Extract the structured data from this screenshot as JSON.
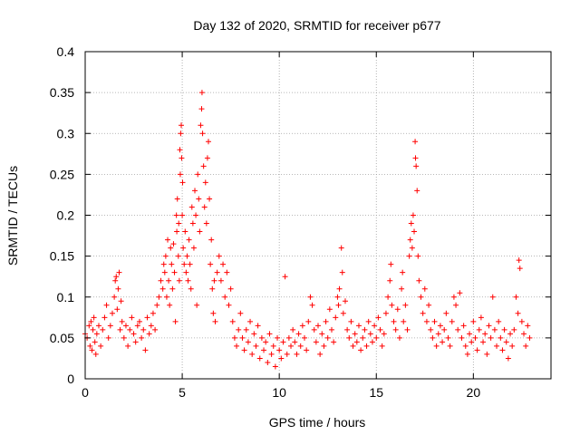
{
  "chart_data": {
    "type": "scatter",
    "title": "Day 132 of 2020, SRMTID for receiver p677",
    "xlabel": "GPS time / hours",
    "ylabel": "SRMTID / TECUs",
    "xlim": [
      0,
      24
    ],
    "ylim": [
      0,
      0.4
    ],
    "grid": true,
    "marker": "+",
    "marker_color": "#ff0000",
    "x_ticks": [
      0,
      5,
      10,
      15,
      20
    ],
    "x_tick_labels": [
      "0",
      "5",
      "10",
      "15",
      "20"
    ],
    "y_ticks": [
      0,
      0.05,
      0.1,
      0.15,
      0.2,
      0.25,
      0.3,
      0.35,
      0.4
    ],
    "y_tick_labels": [
      "0",
      "0.05",
      "0.1",
      "0.15",
      "0.2",
      "0.25",
      "0.3",
      "0.35",
      "0.4"
    ],
    "series": [
      {
        "name": "SRMTID",
        "points": [
          [
            0.0,
            0.055
          ],
          [
            0.1,
            0.05
          ],
          [
            0.2,
            0.065
          ],
          [
            0.25,
            0.04
          ],
          [
            0.3,
            0.07
          ],
          [
            0.35,
            0.035
          ],
          [
            0.4,
            0.06
          ],
          [
            0.45,
            0.075
          ],
          [
            0.5,
            0.045
          ],
          [
            0.55,
            0.03
          ],
          [
            0.6,
            0.055
          ],
          [
            0.7,
            0.065
          ],
          [
            0.8,
            0.04
          ],
          [
            0.9,
            0.06
          ],
          [
            1.0,
            0.075
          ],
          [
            1.1,
            0.09
          ],
          [
            1.2,
            0.05
          ],
          [
            1.3,
            0.065
          ],
          [
            1.4,
            0.08
          ],
          [
            1.5,
            0.1
          ],
          [
            1.55,
            0.12
          ],
          [
            1.6,
            0.125
          ],
          [
            1.65,
            0.085
          ],
          [
            1.7,
            0.11
          ],
          [
            1.75,
            0.13
          ],
          [
            1.8,
            0.06
          ],
          [
            1.85,
            0.095
          ],
          [
            1.9,
            0.07
          ],
          [
            2.0,
            0.05
          ],
          [
            2.1,
            0.065
          ],
          [
            2.2,
            0.04
          ],
          [
            2.3,
            0.06
          ],
          [
            2.4,
            0.075
          ],
          [
            2.5,
            0.055
          ],
          [
            2.6,
            0.045
          ],
          [
            2.7,
            0.065
          ],
          [
            2.8,
            0.07
          ],
          [
            2.9,
            0.05
          ],
          [
            3.0,
            0.06
          ],
          [
            3.1,
            0.035
          ],
          [
            3.2,
            0.075
          ],
          [
            3.3,
            0.055
          ],
          [
            3.4,
            0.065
          ],
          [
            3.5,
            0.08
          ],
          [
            3.6,
            0.06
          ],
          [
            3.7,
            0.09
          ],
          [
            3.8,
            0.1
          ],
          [
            3.9,
            0.12
          ],
          [
            4.0,
            0.11
          ],
          [
            4.05,
            0.14
          ],
          [
            4.1,
            0.13
          ],
          [
            4.15,
            0.15
          ],
          [
            4.2,
            0.1
          ],
          [
            4.25,
            0.17
          ],
          [
            4.3,
            0.12
          ],
          [
            4.35,
            0.09
          ],
          [
            4.4,
            0.16
          ],
          [
            4.45,
            0.14
          ],
          [
            4.5,
            0.11
          ],
          [
            4.55,
            0.165
          ],
          [
            4.6,
            0.13
          ],
          [
            4.65,
            0.07
          ],
          [
            4.7,
            0.2
          ],
          [
            4.72,
            0.18
          ],
          [
            4.75,
            0.22
          ],
          [
            4.8,
            0.15
          ],
          [
            4.82,
            0.19
          ],
          [
            4.85,
            0.12
          ],
          [
            4.88,
            0.28
          ],
          [
            4.9,
            0.25
          ],
          [
            4.92,
            0.3
          ],
          [
            4.95,
            0.31
          ],
          [
            4.97,
            0.27
          ],
          [
            5.0,
            0.2
          ],
          [
            5.02,
            0.24
          ],
          [
            5.05,
            0.16
          ],
          [
            5.1,
            0.14
          ],
          [
            5.15,
            0.18
          ],
          [
            5.2,
            0.13
          ],
          [
            5.25,
            0.15
          ],
          [
            5.3,
            0.12
          ],
          [
            5.35,
            0.17
          ],
          [
            5.4,
            0.14
          ],
          [
            5.45,
            0.11
          ],
          [
            5.5,
            0.21
          ],
          [
            5.55,
            0.19
          ],
          [
            5.6,
            0.16
          ],
          [
            5.65,
            0.23
          ],
          [
            5.7,
            0.2
          ],
          [
            5.75,
            0.09
          ],
          [
            5.8,
            0.25
          ],
          [
            5.85,
            0.22
          ],
          [
            5.9,
            0.18
          ],
          [
            5.95,
            0.31
          ],
          [
            6.0,
            0.33
          ],
          [
            6.02,
            0.35
          ],
          [
            6.05,
            0.3
          ],
          [
            6.1,
            0.26
          ],
          [
            6.15,
            0.21
          ],
          [
            6.2,
            0.24
          ],
          [
            6.25,
            0.19
          ],
          [
            6.3,
            0.27
          ],
          [
            6.35,
            0.29
          ],
          [
            6.4,
            0.22
          ],
          [
            6.45,
            0.14
          ],
          [
            6.5,
            0.17
          ],
          [
            6.55,
            0.11
          ],
          [
            6.6,
            0.08
          ],
          [
            6.65,
            0.12
          ],
          [
            6.7,
            0.07
          ],
          [
            6.8,
            0.13
          ],
          [
            6.9,
            0.15
          ],
          [
            7.0,
            0.12
          ],
          [
            7.1,
            0.14
          ],
          [
            7.2,
            0.1
          ],
          [
            7.3,
            0.13
          ],
          [
            7.4,
            0.09
          ],
          [
            7.5,
            0.11
          ],
          [
            7.6,
            0.07
          ],
          [
            7.7,
            0.05
          ],
          [
            7.8,
            0.04
          ],
          [
            7.9,
            0.06
          ],
          [
            8.0,
            0.08
          ],
          [
            8.1,
            0.05
          ],
          [
            8.2,
            0.035
          ],
          [
            8.3,
            0.06
          ],
          [
            8.4,
            0.045
          ],
          [
            8.5,
            0.07
          ],
          [
            8.6,
            0.03
          ],
          [
            8.7,
            0.055
          ],
          [
            8.8,
            0.04
          ],
          [
            8.9,
            0.065
          ],
          [
            9.0,
            0.025
          ],
          [
            9.1,
            0.05
          ],
          [
            9.2,
            0.035
          ],
          [
            9.3,
            0.045
          ],
          [
            9.4,
            0.02
          ],
          [
            9.5,
            0.055
          ],
          [
            9.6,
            0.03
          ],
          [
            9.7,
            0.04
          ],
          [
            9.8,
            0.015
          ],
          [
            9.9,
            0.05
          ],
          [
            10.0,
            0.035
          ],
          [
            10.1,
            0.025
          ],
          [
            10.2,
            0.045
          ],
          [
            10.3,
            0.125
          ],
          [
            10.4,
            0.03
          ],
          [
            10.5,
            0.05
          ],
          [
            10.6,
            0.04
          ],
          [
            10.7,
            0.06
          ],
          [
            10.8,
            0.045
          ],
          [
            10.9,
            0.03
          ],
          [
            11.0,
            0.055
          ],
          [
            11.1,
            0.04
          ],
          [
            11.2,
            0.065
          ],
          [
            11.3,
            0.05
          ],
          [
            11.4,
            0.035
          ],
          [
            11.5,
            0.07
          ],
          [
            11.6,
            0.1
          ],
          [
            11.7,
            0.09
          ],
          [
            11.8,
            0.06
          ],
          [
            11.9,
            0.045
          ],
          [
            12.0,
            0.065
          ],
          [
            12.1,
            0.03
          ],
          [
            12.2,
            0.055
          ],
          [
            12.3,
            0.04
          ],
          [
            12.4,
            0.07
          ],
          [
            12.5,
            0.05
          ],
          [
            12.6,
            0.085
          ],
          [
            12.7,
            0.06
          ],
          [
            12.8,
            0.045
          ],
          [
            12.9,
            0.075
          ],
          [
            13.0,
            0.1
          ],
          [
            13.05,
            0.09
          ],
          [
            13.1,
            0.11
          ],
          [
            13.2,
            0.16
          ],
          [
            13.25,
            0.13
          ],
          [
            13.3,
            0.08
          ],
          [
            13.4,
            0.095
          ],
          [
            13.5,
            0.06
          ],
          [
            13.6,
            0.05
          ],
          [
            13.7,
            0.07
          ],
          [
            13.8,
            0.04
          ],
          [
            13.9,
            0.055
          ],
          [
            14.0,
            0.045
          ],
          [
            14.1,
            0.065
          ],
          [
            14.2,
            0.035
          ],
          [
            14.3,
            0.05
          ],
          [
            14.4,
            0.06
          ],
          [
            14.5,
            0.04
          ],
          [
            14.6,
            0.07
          ],
          [
            14.7,
            0.055
          ],
          [
            14.8,
            0.045
          ],
          [
            14.9,
            0.065
          ],
          [
            15.0,
            0.05
          ],
          [
            15.1,
            0.075
          ],
          [
            15.2,
            0.06
          ],
          [
            15.3,
            0.04
          ],
          [
            15.4,
            0.055
          ],
          [
            15.5,
            0.08
          ],
          [
            15.6,
            0.1
          ],
          [
            15.7,
            0.12
          ],
          [
            15.75,
            0.14
          ],
          [
            15.8,
            0.09
          ],
          [
            15.9,
            0.07
          ],
          [
            16.0,
            0.06
          ],
          [
            16.1,
            0.085
          ],
          [
            16.2,
            0.05
          ],
          [
            16.3,
            0.11
          ],
          [
            16.35,
            0.13
          ],
          [
            16.4,
            0.07
          ],
          [
            16.5,
            0.09
          ],
          [
            16.6,
            0.06
          ],
          [
            16.7,
            0.15
          ],
          [
            16.75,
            0.17
          ],
          [
            16.8,
            0.19
          ],
          [
            16.85,
            0.16
          ],
          [
            16.9,
            0.2
          ],
          [
            16.95,
            0.18
          ],
          [
            17.0,
            0.29
          ],
          [
            17.02,
            0.27
          ],
          [
            17.05,
            0.26
          ],
          [
            17.1,
            0.23
          ],
          [
            17.15,
            0.15
          ],
          [
            17.2,
            0.12
          ],
          [
            17.3,
            0.1
          ],
          [
            17.4,
            0.08
          ],
          [
            17.5,
            0.11
          ],
          [
            17.6,
            0.07
          ],
          [
            17.7,
            0.09
          ],
          [
            17.8,
            0.06
          ],
          [
            17.9,
            0.05
          ],
          [
            18.0,
            0.07
          ],
          [
            18.1,
            0.04
          ],
          [
            18.2,
            0.055
          ],
          [
            18.3,
            0.065
          ],
          [
            18.4,
            0.045
          ],
          [
            18.5,
            0.06
          ],
          [
            18.6,
            0.08
          ],
          [
            18.7,
            0.05
          ],
          [
            18.8,
            0.04
          ],
          [
            18.9,
            0.07
          ],
          [
            19.0,
            0.1
          ],
          [
            19.1,
            0.09
          ],
          [
            19.2,
            0.06
          ],
          [
            19.3,
            0.105
          ],
          [
            19.4,
            0.05
          ],
          [
            19.5,
            0.065
          ],
          [
            19.6,
            0.04
          ],
          [
            19.7,
            0.03
          ],
          [
            19.8,
            0.055
          ],
          [
            19.9,
            0.045
          ],
          [
            20.0,
            0.07
          ],
          [
            20.1,
            0.05
          ],
          [
            20.2,
            0.035
          ],
          [
            20.3,
            0.06
          ],
          [
            20.4,
            0.075
          ],
          [
            20.5,
            0.045
          ],
          [
            20.6,
            0.055
          ],
          [
            20.7,
            0.03
          ],
          [
            20.8,
            0.065
          ],
          [
            20.9,
            0.05
          ],
          [
            21.0,
            0.1
          ],
          [
            21.1,
            0.06
          ],
          [
            21.2,
            0.04
          ],
          [
            21.3,
            0.07
          ],
          [
            21.4,
            0.05
          ],
          [
            21.5,
            0.035
          ],
          [
            21.6,
            0.06
          ],
          [
            21.7,
            0.045
          ],
          [
            21.8,
            0.025
          ],
          [
            21.9,
            0.055
          ],
          [
            22.0,
            0.04
          ],
          [
            22.1,
            0.06
          ],
          [
            22.2,
            0.1
          ],
          [
            22.3,
            0.08
          ],
          [
            22.35,
            0.145
          ],
          [
            22.4,
            0.135
          ],
          [
            22.5,
            0.07
          ],
          [
            22.6,
            0.055
          ],
          [
            22.7,
            0.04
          ],
          [
            22.8,
            0.065
          ],
          [
            22.9,
            0.05
          ]
        ]
      }
    ]
  }
}
